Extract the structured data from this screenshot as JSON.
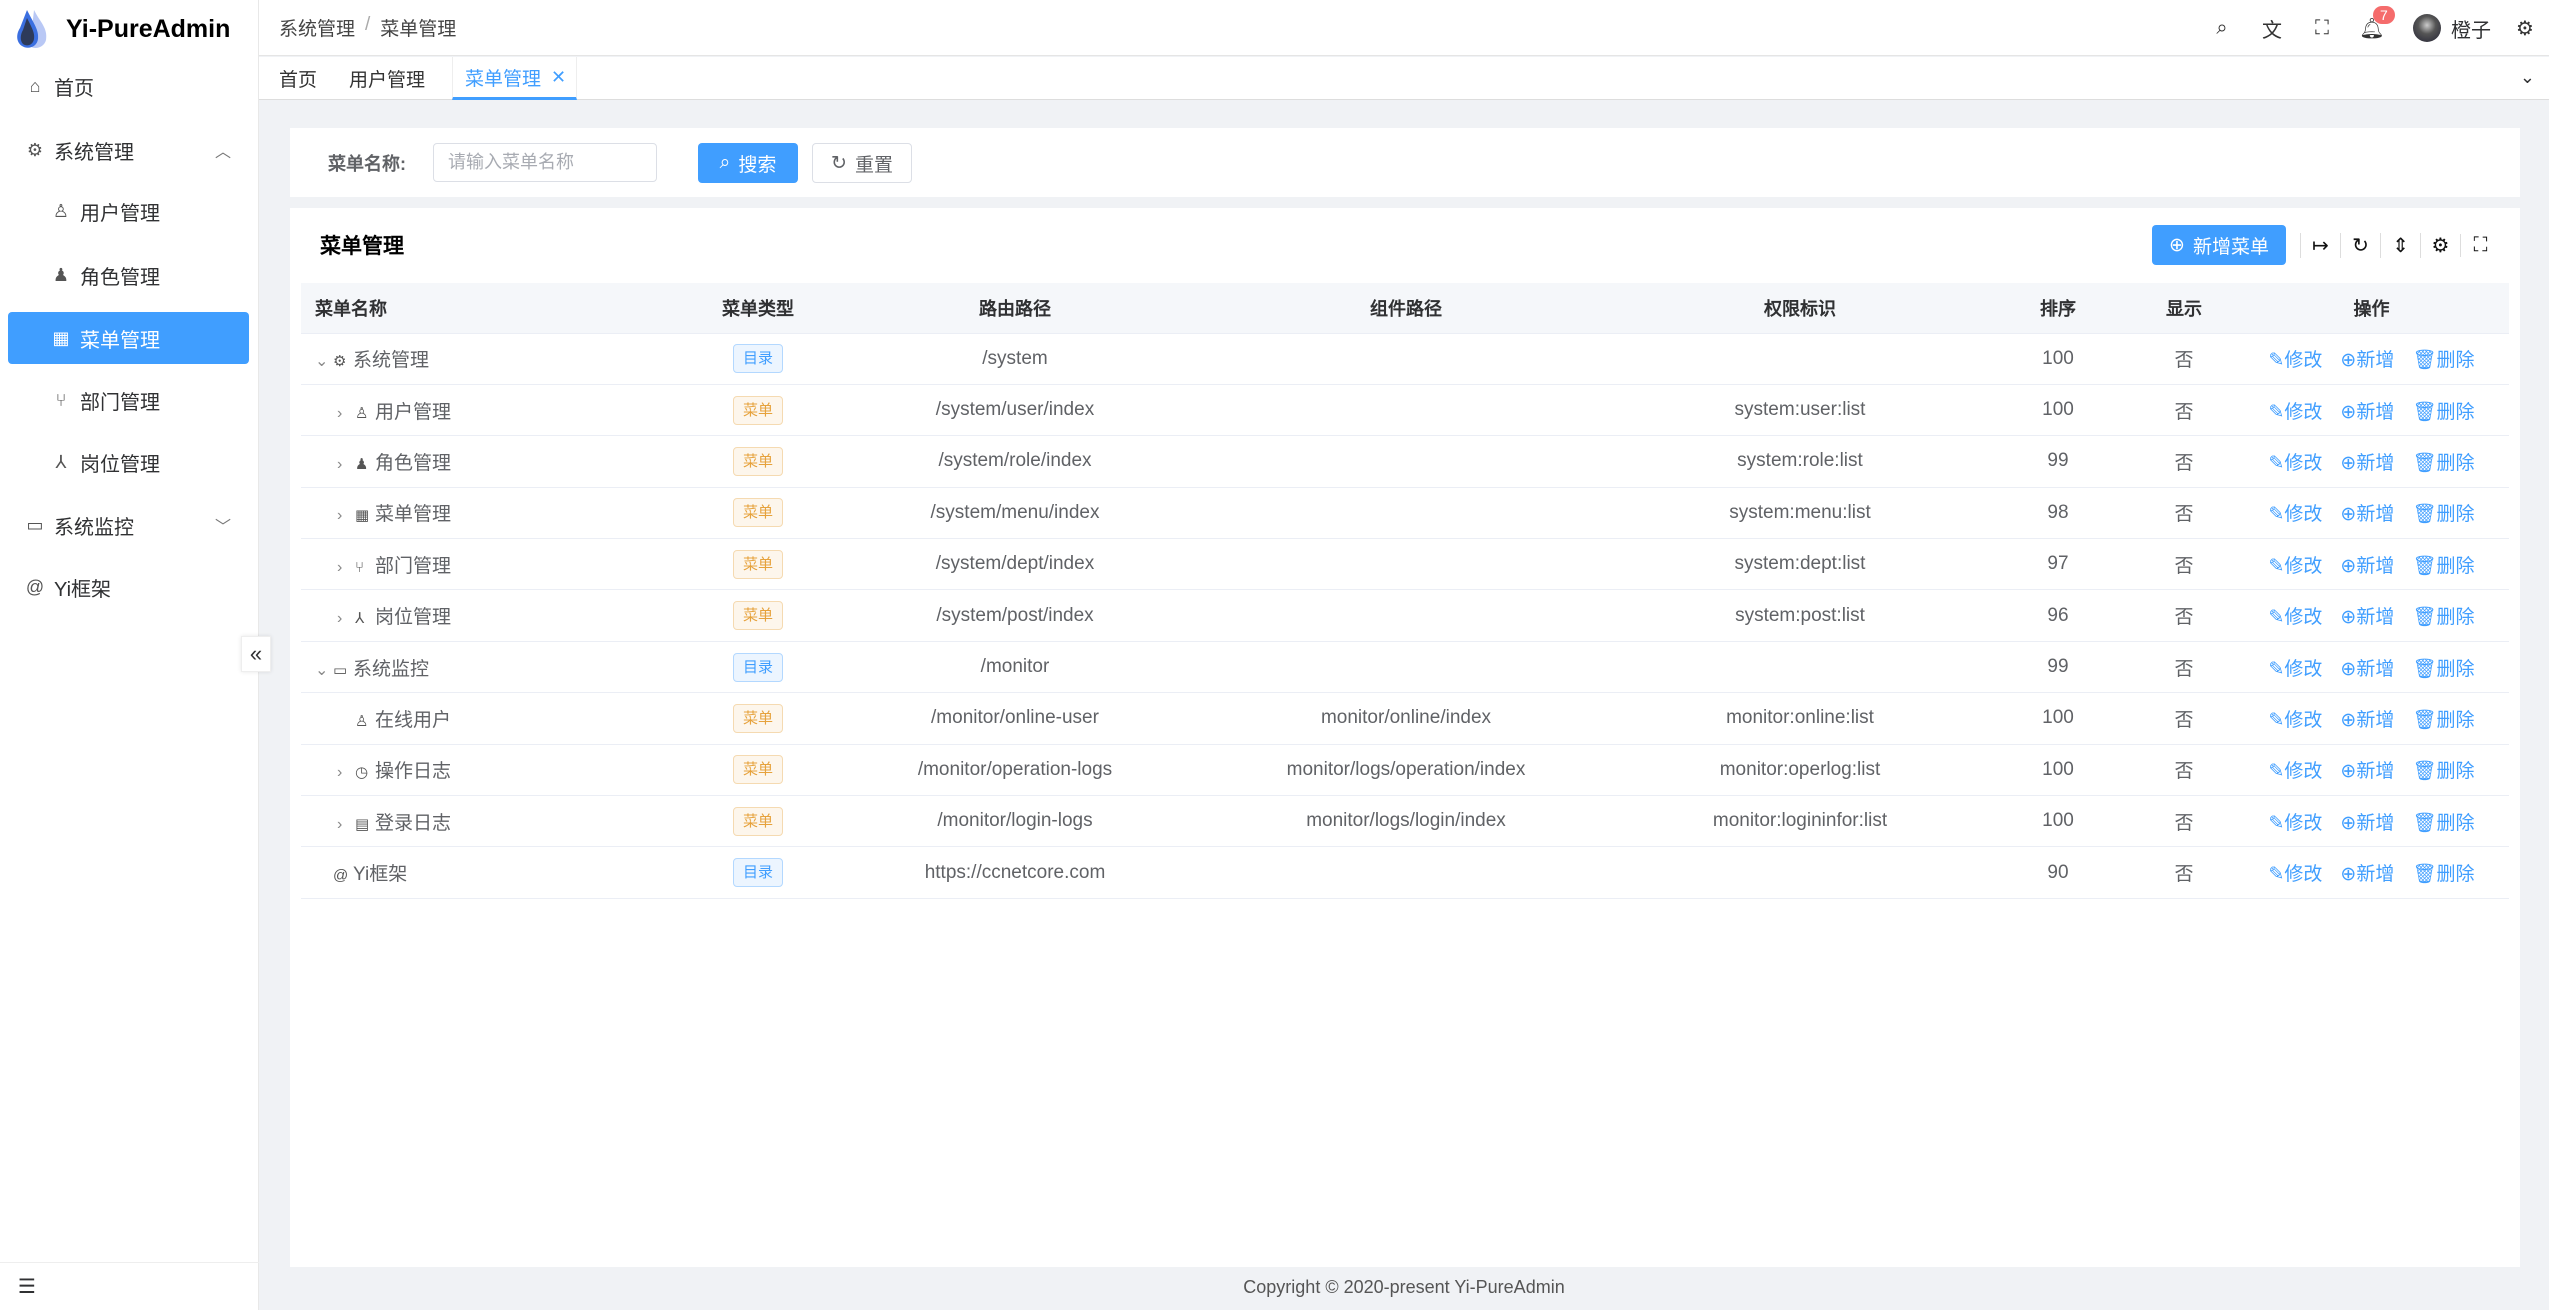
{
  "app": {
    "title": "Yi-PureAdmin",
    "footer": "Copyright © 2020-present Yi-PureAdmin",
    "accent": "#409eff"
  },
  "sidebar": {
    "items": [
      {
        "label": "首页",
        "icon": "home-icon"
      },
      {
        "label": "系统管理",
        "icon": "gear-icon",
        "expanded": true
      },
      {
        "label": "用户管理",
        "icon": "user-lock-icon"
      },
      {
        "label": "角色管理",
        "icon": "role-icon"
      },
      {
        "label": "菜单管理",
        "icon": "grid-icon",
        "active": true
      },
      {
        "label": "部门管理",
        "icon": "branch-icon"
      },
      {
        "label": "岗位管理",
        "icon": "org-icon"
      },
      {
        "label": "系统监控",
        "icon": "monitor-icon",
        "expanded": false
      },
      {
        "label": "Yi框架",
        "icon": "at-icon"
      }
    ]
  },
  "header": {
    "breadcrumb": [
      "系统管理",
      "菜单管理"
    ],
    "notifications": "7",
    "user": "橙子"
  },
  "tabs": [
    {
      "label": "首页"
    },
    {
      "label": "用户管理"
    },
    {
      "label": "菜单管理",
      "active": true
    }
  ],
  "search": {
    "label": "菜单名称:",
    "placeholder": "请输入菜单名称",
    "value": "",
    "search_btn": "搜索",
    "reset_btn": "重置"
  },
  "table": {
    "title": "菜单管理",
    "add_btn": "新增菜单",
    "columns": [
      "菜单名称",
      "菜单类型",
      "路由路径",
      "组件路径",
      "权限标识",
      "排序",
      "显示",
      "操作"
    ],
    "actions": [
      "修改",
      "新增",
      "删除"
    ],
    "rows": [
      {
        "name": "系统管理",
        "icon": "gear-icon",
        "level": 0,
        "expand": "open",
        "type": "目录",
        "kind": "dir",
        "path": "/system",
        "component": "",
        "perm": "",
        "sort": "100",
        "show": "否"
      },
      {
        "name": "用户管理",
        "icon": "user-lock-icon",
        "level": 1,
        "expand": "closed",
        "type": "菜单",
        "kind": "menu",
        "path": "/system/user/index",
        "component": "",
        "perm": "system:user:list",
        "sort": "100",
        "show": "否"
      },
      {
        "name": "角色管理",
        "icon": "role-icon",
        "level": 1,
        "expand": "closed",
        "type": "菜单",
        "kind": "menu",
        "path": "/system/role/index",
        "component": "",
        "perm": "system:role:list",
        "sort": "99",
        "show": "否"
      },
      {
        "name": "菜单管理",
        "icon": "grid-icon",
        "level": 1,
        "expand": "closed",
        "type": "菜单",
        "kind": "menu",
        "path": "/system/menu/index",
        "component": "",
        "perm": "system:menu:list",
        "sort": "98",
        "show": "否"
      },
      {
        "name": "部门管理",
        "icon": "branch-icon",
        "level": 1,
        "expand": "closed",
        "type": "菜单",
        "kind": "menu",
        "path": "/system/dept/index",
        "component": "",
        "perm": "system:dept:list",
        "sort": "97",
        "show": "否"
      },
      {
        "name": "岗位管理",
        "icon": "org-icon",
        "level": 1,
        "expand": "closed",
        "type": "菜单",
        "kind": "menu",
        "path": "/system/post/index",
        "component": "",
        "perm": "system:post:list",
        "sort": "96",
        "show": "否"
      },
      {
        "name": "系统监控",
        "icon": "monitor-icon",
        "level": 0,
        "expand": "open",
        "type": "目录",
        "kind": "dir",
        "path": "/monitor",
        "component": "",
        "perm": "",
        "sort": "99",
        "show": "否"
      },
      {
        "name": "在线用户",
        "icon": "online-user-icon",
        "level": 1,
        "expand": "none",
        "type": "菜单",
        "kind": "menu",
        "path": "/monitor/online-user",
        "component": "monitor/online/index",
        "perm": "monitor:online:list",
        "sort": "100",
        "show": "否"
      },
      {
        "name": "操作日志",
        "icon": "history-icon",
        "level": 1,
        "expand": "closed",
        "type": "菜单",
        "kind": "menu",
        "path": "/monitor/operation-logs",
        "component": "monitor/logs/operation/index",
        "perm": "monitor:operlog:list",
        "sort": "100",
        "show": "否"
      },
      {
        "name": "登录日志",
        "icon": "window-icon",
        "level": 1,
        "expand": "closed",
        "type": "菜单",
        "kind": "menu",
        "path": "/monitor/login-logs",
        "component": "monitor/logs/login/index",
        "perm": "monitor:logininfor:list",
        "sort": "100",
        "show": "否"
      },
      {
        "name": "Yi框架",
        "icon": "at-icon",
        "level": 0,
        "expand": "none",
        "type": "目录",
        "kind": "dir",
        "path": "https://ccnetcore.com",
        "component": "",
        "perm": "",
        "sort": "90",
        "show": "否"
      }
    ]
  }
}
